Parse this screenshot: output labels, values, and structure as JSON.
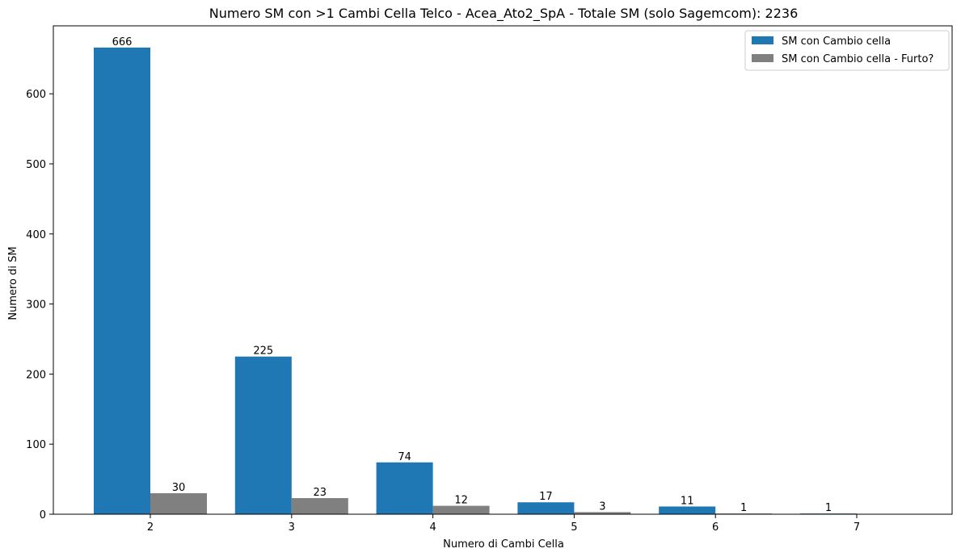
{
  "chart_data": {
    "type": "bar",
    "title": "Numero SM con >1 Cambi Cella Telco - Acea_Ato2_SpA - Totale SM (solo Sagemcom): 2236",
    "xlabel": "Numero di Cambi Cella",
    "ylabel": "Numero di SM",
    "categories": [
      "2",
      "3",
      "4",
      "5",
      "6",
      "7"
    ],
    "ylim": [
      0,
      697
    ],
    "yticks": [
      0,
      100,
      200,
      300,
      400,
      500,
      600
    ],
    "grid": false,
    "legend_position": "top-right",
    "series": [
      {
        "name": "SM con Cambio cella",
        "color": "#1f77b4",
        "values": [
          666,
          225,
          74,
          17,
          11,
          1
        ],
        "labels": [
          "666",
          "225",
          "74",
          "17",
          "11",
          "1"
        ]
      },
      {
        "name": "SM con Cambio cella - Furto?",
        "color": "#808080",
        "values": [
          30,
          23,
          12,
          3,
          1,
          0
        ],
        "labels": [
          "30",
          "23",
          "12",
          "3",
          "1",
          ""
        ]
      }
    ]
  }
}
